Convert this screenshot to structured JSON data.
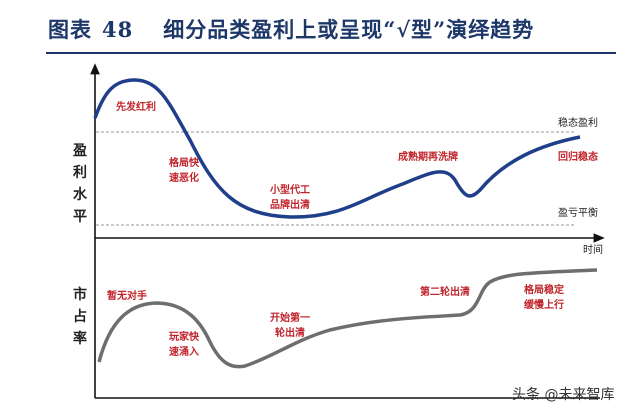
{
  "title": {
    "prefix": "图表",
    "number": "48",
    "text": "细分品类盈利上或呈现“√型”演绎趋势"
  },
  "top_chart": {
    "y_label": "盈利水平",
    "x_label": "时间",
    "ref_lines": {
      "upper": "稳态盈利",
      "lower": "盈亏平衡"
    },
    "annotations": [
      "先发红利",
      "格局快\n速恶化",
      "小型代工\n品牌出清",
      "成熟期再洗牌",
      "回归稳态"
    ],
    "line_color": "#1f3f8a"
  },
  "bottom_chart": {
    "y_label": "市占率",
    "annotations": [
      "暂无对手",
      "玩家快\n速涌入",
      "开始第一\n轮出清",
      "第二轮出清",
      "格局稳定\n缓慢上行"
    ],
    "line_color": "#6e6e6e"
  },
  "watermark": "头条 @未来智库"
}
